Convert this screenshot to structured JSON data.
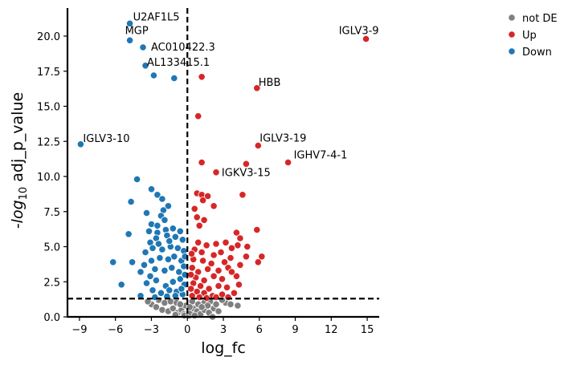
{
  "chart_data": {
    "type": "scatter",
    "xlabel": "log_fc",
    "ylabel_prefix": "-",
    "ylabel_log": "log",
    "ylabel_sub": "10",
    "ylabel_rest": " adj_p_value",
    "xlim": [
      -10,
      16
    ],
    "ylim": [
      0,
      22
    ],
    "xticks": [
      -9,
      -6,
      -3,
      0,
      3,
      6,
      9,
      12,
      15
    ],
    "yticks": [
      0.0,
      2.5,
      5.0,
      7.5,
      10.0,
      12.5,
      15.0,
      17.5,
      20.0
    ],
    "xtick_labels": [
      "−9",
      "−6",
      "−3",
      "0",
      "3",
      "6",
      "9",
      "12",
      "15"
    ],
    "ytick_labels": [
      "0.0",
      "2.5",
      "5.0",
      "7.5",
      "10.0",
      "12.5",
      "15.0",
      "17.5",
      "20.0"
    ],
    "thresholds": {
      "vline_x": 0,
      "hline_y": 1.3
    },
    "legend": {
      "placement": "top-right",
      "entries": [
        {
          "name": "not DE",
          "color": "#7f7f7f"
        },
        {
          "name": "Up",
          "color": "#d62728"
        },
        {
          "name": "Down",
          "color": "#1f77b4"
        }
      ]
    },
    "series": [
      {
        "name": "Down",
        "color": "#1f77b4",
        "points": [
          [
            -4.8,
            20.9
          ],
          [
            -4.8,
            19.7
          ],
          [
            -3.7,
            19.2
          ],
          [
            -3.5,
            17.9
          ],
          [
            -2.8,
            17.2
          ],
          [
            -1.1,
            17.0
          ],
          [
            -8.9,
            12.3
          ],
          [
            -4.2,
            9.8
          ],
          [
            -3.0,
            9.1
          ],
          [
            -2.5,
            8.7
          ],
          [
            -4.7,
            8.2
          ],
          [
            -2.1,
            8.4
          ],
          [
            -1.6,
            7.9
          ],
          [
            -3.4,
            7.4
          ],
          [
            -2.0,
            7.6
          ],
          [
            -2.2,
            7.2
          ],
          [
            -3.0,
            6.6
          ],
          [
            -2.5,
            6.5
          ],
          [
            -1.9,
            6.9
          ],
          [
            -3.2,
            6.1
          ],
          [
            -2.5,
            6.0
          ],
          [
            -1.8,
            6.2
          ],
          [
            -1.2,
            6.3
          ],
          [
            -0.6,
            6.1
          ],
          [
            -4.9,
            5.9
          ],
          [
            -3.1,
            5.3
          ],
          [
            -2.6,
            5.6
          ],
          [
            -1.7,
            5.8
          ],
          [
            -1.0,
            5.7
          ],
          [
            -0.4,
            5.5
          ],
          [
            -3.5,
            4.6
          ],
          [
            -2.9,
            4.9
          ],
          [
            -2.1,
            4.8
          ],
          [
            -1.4,
            5.0
          ],
          [
            -0.8,
            4.9
          ],
          [
            -0.3,
            4.7
          ],
          [
            -6.2,
            3.9
          ],
          [
            -4.6,
            3.9
          ],
          [
            -3.6,
            3.7
          ],
          [
            -3.0,
            4.0
          ],
          [
            -2.3,
            4.2
          ],
          [
            -1.6,
            4.1
          ],
          [
            -1.1,
            4.3
          ],
          [
            -0.5,
            4.0
          ],
          [
            -5.5,
            2.3
          ],
          [
            -3.9,
            3.2
          ],
          [
            -3.1,
            2.9
          ],
          [
            -2.7,
            3.4
          ],
          [
            -1.9,
            3.3
          ],
          [
            -1.3,
            3.5
          ],
          [
            -0.7,
            3.2
          ],
          [
            -0.3,
            3.6
          ],
          [
            -3.9,
            1.5
          ],
          [
            -3.4,
            2.4
          ],
          [
            -2.6,
            2.6
          ],
          [
            -1.8,
            2.2
          ],
          [
            -1.2,
            2.5
          ],
          [
            -0.6,
            2.7
          ],
          [
            -0.25,
            2.3
          ],
          [
            -2.9,
            1.9
          ],
          [
            -2.2,
            1.7
          ],
          [
            -1.5,
            1.9
          ],
          [
            -0.9,
            1.8
          ],
          [
            -0.4,
            1.6
          ],
          [
            -2.7,
            1.4
          ],
          [
            -1.7,
            1.45
          ],
          [
            -1.0,
            1.5
          ],
          [
            -0.5,
            2.0
          ],
          [
            -0.2,
            3.0
          ],
          [
            -0.2,
            4.3
          ],
          [
            -2.4,
            5.2
          ],
          [
            -1.5,
            5.4
          ]
        ]
      },
      {
        "name": "Up",
        "color": "#d62728",
        "points": [
          [
            14.9,
            19.8
          ],
          [
            1.2,
            17.1
          ],
          [
            5.8,
            16.3
          ],
          [
            0.9,
            14.3
          ],
          [
            5.9,
            12.2
          ],
          [
            8.4,
            11.0
          ],
          [
            1.2,
            11.0
          ],
          [
            4.9,
            10.9
          ],
          [
            2.4,
            10.3
          ],
          [
            0.8,
            8.8
          ],
          [
            1.2,
            8.7
          ],
          [
            1.7,
            8.6
          ],
          [
            4.6,
            8.7
          ],
          [
            1.3,
            8.3
          ],
          [
            2.2,
            7.9
          ],
          [
            0.6,
            7.7
          ],
          [
            0.8,
            7.1
          ],
          [
            1.4,
            6.9
          ],
          [
            1.0,
            6.5
          ],
          [
            5.8,
            6.2
          ],
          [
            4.1,
            6.0
          ],
          [
            4.4,
            5.6
          ],
          [
            3.2,
            5.3
          ],
          [
            2.4,
            5.2
          ],
          [
            0.9,
            5.3
          ],
          [
            1.6,
            5.1
          ],
          [
            4.2,
            5.1
          ],
          [
            3.7,
            4.9
          ],
          [
            5.0,
            5.0
          ],
          [
            2.8,
            4.6
          ],
          [
            2.2,
            4.4
          ],
          [
            1.2,
            4.6
          ],
          [
            0.6,
            4.8
          ],
          [
            6.2,
            4.3
          ],
          [
            4.9,
            4.3
          ],
          [
            3.6,
            4.2
          ],
          [
            3.1,
            3.9
          ],
          [
            2.0,
            3.8
          ],
          [
            1.3,
            4.0
          ],
          [
            0.5,
            4.1
          ],
          [
            5.9,
            3.9
          ],
          [
            4.4,
            3.7
          ],
          [
            3.4,
            3.5
          ],
          [
            2.6,
            3.3
          ],
          [
            1.7,
            3.4
          ],
          [
            0.9,
            3.2
          ],
          [
            0.4,
            3.5
          ],
          [
            4.1,
            2.9
          ],
          [
            3.7,
            3.2
          ],
          [
            2.9,
            2.7
          ],
          [
            2.2,
            2.9
          ],
          [
            1.4,
            2.6
          ],
          [
            0.7,
            2.8
          ],
          [
            4.3,
            2.3
          ],
          [
            3.3,
            2.1
          ],
          [
            2.6,
            2.2
          ],
          [
            1.8,
            2.0
          ],
          [
            1.1,
            2.2
          ],
          [
            0.5,
            2.4
          ],
          [
            3.9,
            1.7
          ],
          [
            2.9,
            1.6
          ],
          [
            2.1,
            1.5
          ],
          [
            1.4,
            1.7
          ],
          [
            0.8,
            1.8
          ],
          [
            0.3,
            2.0
          ],
          [
            3.4,
            1.4
          ],
          [
            2.4,
            1.4
          ],
          [
            1.6,
            1.35
          ],
          [
            1.0,
            1.4
          ],
          [
            0.4,
            1.5
          ],
          [
            0.3,
            3.0
          ],
          [
            0.35,
            4.5
          ]
        ]
      },
      {
        "name": "not DE",
        "color": "#7f7f7f",
        "points": [
          [
            -3.0,
            0.9
          ],
          [
            -2.6,
            0.7
          ],
          [
            -2.1,
            0.5
          ],
          [
            -1.6,
            0.4
          ],
          [
            -1.2,
            0.6
          ],
          [
            -0.8,
            0.3
          ],
          [
            -0.5,
            0.5
          ],
          [
            -0.3,
            0.2
          ],
          [
            -0.15,
            0.8
          ],
          [
            -1.9,
            1.0
          ],
          [
            -1.4,
            1.1
          ],
          [
            -0.9,
            1.0
          ],
          [
            -2.4,
            1.2
          ],
          [
            -3.3,
            1.1
          ],
          [
            -0.6,
            0.9
          ],
          [
            -1.0,
            0.15
          ],
          [
            -0.25,
            0.1
          ],
          [
            0.15,
            0.1
          ],
          [
            0.3,
            0.3
          ],
          [
            0.5,
            0.6
          ],
          [
            0.8,
            0.4
          ],
          [
            1.1,
            0.2
          ],
          [
            1.4,
            0.5
          ],
          [
            1.8,
            0.3
          ],
          [
            2.2,
            0.6
          ],
          [
            2.6,
            0.4
          ],
          [
            2.4,
            0.9
          ],
          [
            1.9,
            1.1
          ],
          [
            1.4,
            1.0
          ],
          [
            0.9,
            0.9
          ],
          [
            0.4,
            1.1
          ],
          [
            3.2,
            1.0
          ],
          [
            3.6,
            0.9
          ],
          [
            4.2,
            0.8
          ],
          [
            2.1,
            0.0
          ],
          [
            0.6,
            0.1
          ],
          [
            1.7,
            0.8
          ],
          [
            1.2,
            0.7
          ],
          [
            0.2,
            0.7
          ],
          [
            2.9,
            1.2
          ]
        ]
      }
    ],
    "annotations": [
      {
        "text": "U2AF1L5",
        "x": -4.8,
        "y": 20.9,
        "anchor": "start",
        "dx": 4,
        "dy": -4
      },
      {
        "text": "MGP",
        "x": -4.8,
        "y": 19.7,
        "anchor": "start",
        "dx": -6,
        "dy": -8
      },
      {
        "text": "AC010422.3",
        "x": -3.7,
        "y": 19.2,
        "anchor": "start",
        "dx": 10,
        "dy": 4
      },
      {
        "text": "AL133415.1",
        "x": -3.5,
        "y": 17.9,
        "anchor": "start",
        "dx": 2,
        "dy": 0
      },
      {
        "text": "IGLV3-9",
        "x": 14.9,
        "y": 19.8,
        "anchor": "end",
        "dx": 16,
        "dy": -6
      },
      {
        "text": "HBB",
        "x": 5.8,
        "y": 16.3,
        "anchor": "start",
        "dx": 2,
        "dy": -3
      },
      {
        "text": "IGLV3-19",
        "x": 5.9,
        "y": 12.2,
        "anchor": "start",
        "dx": 2,
        "dy": -5
      },
      {
        "text": "IGHV7-4-1",
        "x": 8.4,
        "y": 11.0,
        "anchor": "start",
        "dx": 7,
        "dy": -5
      },
      {
        "text": "IGKV3-15",
        "x": 4.9,
        "y": 10.9,
        "anchor": "middle",
        "dx": 0,
        "dy": 15
      },
      {
        "text": "IGLV3-10",
        "x": -8.9,
        "y": 12.3,
        "anchor": "start",
        "dx": 3,
        "dy": -3
      }
    ]
  }
}
